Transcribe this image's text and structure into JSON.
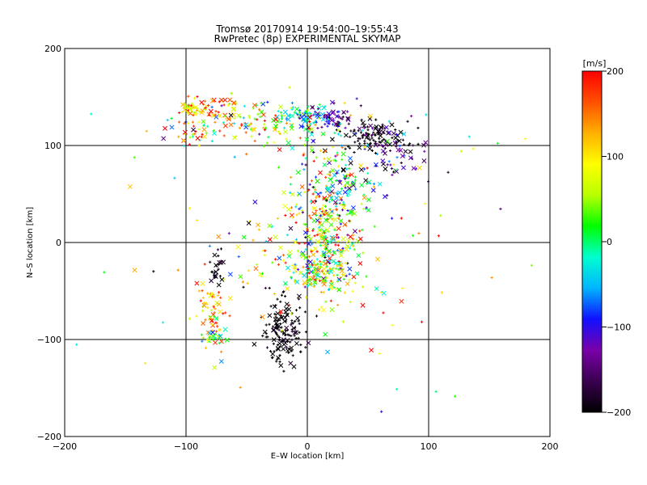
{
  "chart_data": {
    "type": "scatter",
    "title": "Tromsø 20170914 19:54:00–19:55:43",
    "subtitle": "RwPretec (8p) EXPERIMENTAL SKYMAP",
    "xlabel": "E–W location [km]",
    "ylabel": "N–S location [km]",
    "xlim": [
      -200,
      200
    ],
    "ylim": [
      -200,
      200
    ],
    "xticks": [
      "−200",
      "−100",
      "0",
      "100",
      "200"
    ],
    "yticks": [
      "−200",
      "−100",
      "0",
      "100",
      "200"
    ],
    "grid": true,
    "grid_values": [
      -100,
      0,
      100
    ],
    "colorbar": {
      "label": "[m/s]",
      "range": [
        -200,
        200
      ],
      "ticks": [
        "200",
        "100",
        "0",
        "−100",
        "−200"
      ],
      "tick_values": [
        200,
        100,
        0,
        -100,
        -200
      ],
      "colors": [
        "#000000",
        "#3a0050",
        "#7a00a8",
        "#1010ff",
        "#00b4ff",
        "#00ffd0",
        "#00ff00",
        "#b8ff00",
        "#ffff00",
        "#ffb000",
        "#ff5000",
        "#ff0000"
      ]
    },
    "marker_types": [
      "+",
      "x"
    ],
    "clusters": [
      {
        "x": 15,
        "y": 20,
        "sx": 16,
        "sy": 35,
        "n": 320,
        "v": 60,
        "sv": 110
      },
      {
        "x": 15,
        "y": -30,
        "sx": 14,
        "sy": 10,
        "n": 140,
        "v": 60,
        "sv": 90
      },
      {
        "x": 30,
        "y": 60,
        "sx": 18,
        "sy": 20,
        "n": 90,
        "v": -60,
        "sv": 100
      },
      {
        "x": 0,
        "y": 130,
        "sx": 10,
        "sy": 6,
        "n": 60,
        "v": -50,
        "sv": 40
      },
      {
        "x": 22,
        "y": 130,
        "sx": 9,
        "sy": 8,
        "n": 50,
        "v": -130,
        "sv": 30
      },
      {
        "x": 55,
        "y": 110,
        "sx": 16,
        "sy": 9,
        "n": 110,
        "v": -200,
        "sv": 30
      },
      {
        "x": 70,
        "y": 90,
        "sx": 15,
        "sy": 14,
        "n": 60,
        "v": -140,
        "sv": 70
      },
      {
        "x": -40,
        "y": 130,
        "sx": 28,
        "sy": 10,
        "n": 110,
        "v": 60,
        "sv": 90
      },
      {
        "x": -95,
        "y": 140,
        "sx": 4,
        "sy": 4,
        "n": 35,
        "v": 70,
        "sv": 20
      },
      {
        "x": -80,
        "y": 140,
        "sx": 9,
        "sy": 9,
        "n": 35,
        "v": 170,
        "sv": 30
      },
      {
        "x": -100,
        "y": 115,
        "sx": 12,
        "sy": 8,
        "n": 40,
        "v": 50,
        "sv": 130
      },
      {
        "x": -20,
        "y": 110,
        "sx": 25,
        "sy": 12,
        "n": 40,
        "v": 80,
        "sv": 90
      },
      {
        "x": -20,
        "y": -90,
        "sx": 9,
        "sy": 18,
        "n": 150,
        "v": -200,
        "sv": 15
      },
      {
        "x": -78,
        "y": -75,
        "sx": 6,
        "sy": 18,
        "n": 70,
        "v": 130,
        "sv": 50
      },
      {
        "x": -75,
        "y": -100,
        "sx": 5,
        "sy": 5,
        "n": 20,
        "v": -10,
        "sv": 30
      },
      {
        "x": -75,
        "y": -28,
        "sx": 4,
        "sy": 10,
        "n": 25,
        "v": -200,
        "sv": 20
      },
      {
        "x": -30,
        "y": -20,
        "sx": 22,
        "sy": 25,
        "n": 40,
        "v": 60,
        "sv": 100
      },
      {
        "x": 10,
        "y": 0,
        "sx": 100,
        "sy": 90,
        "n": 90,
        "v": 40,
        "sv": 120
      }
    ]
  }
}
